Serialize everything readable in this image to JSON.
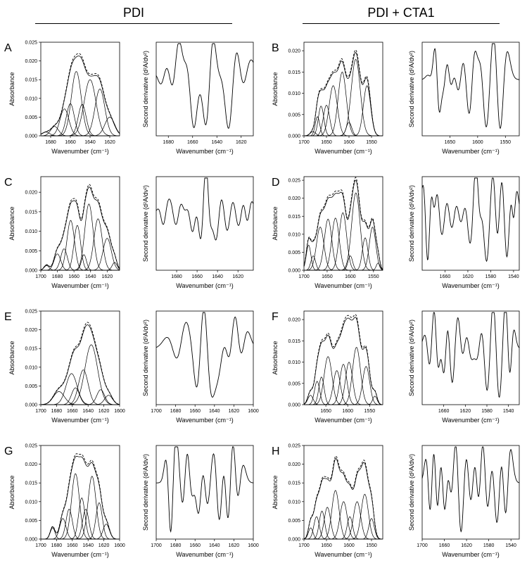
{
  "headers": {
    "left": "PDI",
    "right": "PDI + CTA1"
  },
  "labels": {
    "absorbance": "Absorbance",
    "wavenumber": "Wavenumber (cm⁻¹)",
    "second_derivative": "Second derivative (d²A/dν²)"
  },
  "chart_data": [
    {
      "letter": "A",
      "type": "line",
      "xlim": [
        1690,
        1610
      ],
      "ylim": [
        0,
        0.025
      ],
      "xticks": [
        1680,
        1660,
        1640,
        1620
      ],
      "yticks": [
        "0.000",
        "0.005",
        "0.010",
        "0.015",
        "0.020",
        "0.025"
      ],
      "bands": [
        {
          "center": 1685,
          "height": 0.001,
          "width": 4
        },
        {
          "center": 1676,
          "height": 0.0025,
          "width": 4
        },
        {
          "center": 1666,
          "height": 0.0072,
          "width": 4.5
        },
        {
          "center": 1660,
          "height": 0.0086,
          "width": 4
        },
        {
          "center": 1654,
          "height": 0.0172,
          "width": 5
        },
        {
          "center": 1648,
          "height": 0.0084,
          "width": 4
        },
        {
          "center": 1640,
          "height": 0.015,
          "width": 6
        },
        {
          "center": 1630,
          "height": 0.0125,
          "width": 5
        },
        {
          "center": 1620,
          "height": 0.005,
          "width": 5
        }
      ],
      "envelope_peak": 0.022,
      "deriv_xticks": [
        1680,
        1660,
        1640,
        1620
      ]
    },
    {
      "letter": "B",
      "type": "line",
      "xlim": [
        1700,
        1525
      ],
      "ylim": [
        0,
        0.022
      ],
      "xticks": [
        1700,
        1650,
        1600,
        1550
      ],
      "yticks": [
        "0.000",
        "0.005",
        "0.010",
        "0.015",
        "0.020"
      ],
      "bands": [
        {
          "center": 1680,
          "height": 0.001,
          "width": 6
        },
        {
          "center": 1670,
          "height": 0.0045,
          "width": 5
        },
        {
          "center": 1662,
          "height": 0.007,
          "width": 6
        },
        {
          "center": 1650,
          "height": 0.0072,
          "width": 7
        },
        {
          "center": 1635,
          "height": 0.0118,
          "width": 9
        },
        {
          "center": 1615,
          "height": 0.015,
          "width": 9
        },
        {
          "center": 1600,
          "height": 0.0032,
          "width": 6
        },
        {
          "center": 1585,
          "height": 0.018,
          "width": 10
        },
        {
          "center": 1560,
          "height": 0.0118,
          "width": 8
        }
      ],
      "envelope_peak": 0.0202,
      "deriv_xticks": [
        1650,
        1600,
        1550
      ]
    },
    {
      "letter": "C",
      "type": "line",
      "xlim": [
        1700,
        1605
      ],
      "ylim": [
        0,
        0.024
      ],
      "xticks": [
        1700,
        1680,
        1660,
        1640,
        1620
      ],
      "yticks": [
        "0.000",
        "0.005",
        "0.010",
        "0.015",
        "0.020"
      ],
      "bands": [
        {
          "center": 1693,
          "height": 0.0012,
          "width": 3
        },
        {
          "center": 1680,
          "height": 0.0042,
          "width": 4
        },
        {
          "center": 1672,
          "height": 0.0055,
          "width": 4
        },
        {
          "center": 1664,
          "height": 0.0128,
          "width": 4.5
        },
        {
          "center": 1656,
          "height": 0.0115,
          "width": 4
        },
        {
          "center": 1648,
          "height": 0.004,
          "width": 3
        },
        {
          "center": 1642,
          "height": 0.017,
          "width": 5
        },
        {
          "center": 1631,
          "height": 0.0132,
          "width": 5
        },
        {
          "center": 1620,
          "height": 0.0082,
          "width": 5
        },
        {
          "center": 1611,
          "height": 0.002,
          "width": 3
        }
      ],
      "envelope_peak": 0.022,
      "deriv_xticks": [
        1680,
        1660,
        1640,
        1620
      ]
    },
    {
      "letter": "D",
      "type": "line",
      "xlim": [
        1700,
        1530
      ],
      "ylim": [
        0,
        0.026
      ],
      "xticks": [
        1700,
        1650,
        1600,
        1550
      ],
      "yticks": [
        "0.000",
        "0.005",
        "0.010",
        "0.015",
        "0.020",
        "0.025"
      ],
      "bands": [
        {
          "center": 1690,
          "height": 0.007,
          "width": 5
        },
        {
          "center": 1680,
          "height": 0.004,
          "width": 5
        },
        {
          "center": 1665,
          "height": 0.012,
          "width": 8
        },
        {
          "center": 1648,
          "height": 0.0142,
          "width": 8
        },
        {
          "center": 1632,
          "height": 0.0145,
          "width": 8
        },
        {
          "center": 1616,
          "height": 0.016,
          "width": 8
        },
        {
          "center": 1600,
          "height": 0.004,
          "width": 5
        },
        {
          "center": 1588,
          "height": 0.0215,
          "width": 9
        },
        {
          "center": 1568,
          "height": 0.009,
          "width": 6
        },
        {
          "center": 1552,
          "height": 0.012,
          "width": 7
        },
        {
          "center": 1540,
          "height": 0.002,
          "width": 4
        }
      ],
      "envelope_peak": 0.0258,
      "deriv_xticks": [
        1660,
        1620,
        1580,
        1540
      ]
    },
    {
      "letter": "E",
      "type": "line",
      "xlim": [
        1700,
        1600
      ],
      "ylim": [
        0,
        0.025
      ],
      "xticks": [
        1700,
        1680,
        1660,
        1640,
        1620,
        1600
      ],
      "yticks": [
        "0.000",
        "0.005",
        "0.010",
        "0.015",
        "0.020",
        "0.025"
      ],
      "bands": [
        {
          "center": 1677,
          "height": 0.0035,
          "width": 7
        },
        {
          "center": 1661,
          "height": 0.0083,
          "width": 7
        },
        {
          "center": 1656,
          "height": 0.0045,
          "width": 5
        },
        {
          "center": 1646,
          "height": 0.0093,
          "width": 6
        },
        {
          "center": 1636,
          "height": 0.016,
          "width": 8
        },
        {
          "center": 1624,
          "height": 0.004,
          "width": 5
        },
        {
          "center": 1614,
          "height": 0.0025,
          "width": 5
        }
      ],
      "envelope_peak": 0.022,
      "deriv_xticks": [
        1700,
        1680,
        1660,
        1640,
        1620,
        1600
      ]
    },
    {
      "letter": "F",
      "type": "line",
      "xlim": [
        1700,
        1520
      ],
      "ylim": [
        0,
        0.022
      ],
      "xticks": [
        1650,
        1600,
        1550
      ],
      "yticks": [
        "0.000",
        "0.005",
        "0.010",
        "0.015",
        "0.020"
      ],
      "bands": [
        {
          "center": 1685,
          "height": 0.0022,
          "width": 6
        },
        {
          "center": 1670,
          "height": 0.0055,
          "width": 6
        },
        {
          "center": 1660,
          "height": 0.0065,
          "width": 6
        },
        {
          "center": 1645,
          "height": 0.0113,
          "width": 9
        },
        {
          "center": 1625,
          "height": 0.008,
          "width": 8
        },
        {
          "center": 1610,
          "height": 0.0095,
          "width": 8
        },
        {
          "center": 1597,
          "height": 0.01,
          "width": 8
        },
        {
          "center": 1580,
          "height": 0.0135,
          "width": 9
        },
        {
          "center": 1558,
          "height": 0.009,
          "width": 8
        },
        {
          "center": 1538,
          "height": 0.002,
          "width": 5
        }
      ],
      "envelope_peak": 0.0212,
      "deriv_xticks": [
        1660,
        1620,
        1580,
        1540
      ]
    },
    {
      "letter": "G",
      "type": "line",
      "xlim": [
        1700,
        1600
      ],
      "ylim": [
        0,
        0.025
      ],
      "xticks": [
        1700,
        1680,
        1660,
        1640,
        1620,
        1600
      ],
      "yticks": [
        "0.000",
        "0.005",
        "0.010",
        "0.015",
        "0.020",
        "0.025"
      ],
      "bands": [
        {
          "center": 1685,
          "height": 0.003,
          "width": 3
        },
        {
          "center": 1672,
          "height": 0.0055,
          "width": 4
        },
        {
          "center": 1664,
          "height": 0.008,
          "width": 4
        },
        {
          "center": 1656,
          "height": 0.0175,
          "width": 5
        },
        {
          "center": 1648,
          "height": 0.011,
          "width": 4
        },
        {
          "center": 1643,
          "height": 0.008,
          "width": 4
        },
        {
          "center": 1635,
          "height": 0.0168,
          "width": 5
        },
        {
          "center": 1626,
          "height": 0.0097,
          "width": 4
        },
        {
          "center": 1617,
          "height": 0.004,
          "width": 4
        }
      ],
      "envelope_peak": 0.0228,
      "deriv_xticks": [
        1700,
        1680,
        1660,
        1640,
        1620,
        1600
      ]
    },
    {
      "letter": "H",
      "type": "line",
      "xlim": [
        1700,
        1525
      ],
      "ylim": [
        0,
        0.025
      ],
      "xticks": [
        1700,
        1650,
        1600,
        1550
      ],
      "yticks": [
        "0.000",
        "0.005",
        "0.010",
        "0.015",
        "0.020",
        "0.025"
      ],
      "bands": [
        {
          "center": 1685,
          "height": 0.003,
          "width": 5
        },
        {
          "center": 1672,
          "height": 0.006,
          "width": 6
        },
        {
          "center": 1660,
          "height": 0.0075,
          "width": 6
        },
        {
          "center": 1648,
          "height": 0.0085,
          "width": 7
        },
        {
          "center": 1630,
          "height": 0.013,
          "width": 8
        },
        {
          "center": 1612,
          "height": 0.01,
          "width": 8
        },
        {
          "center": 1598,
          "height": 0.006,
          "width": 6
        },
        {
          "center": 1582,
          "height": 0.01,
          "width": 8
        },
        {
          "center": 1565,
          "height": 0.012,
          "width": 8
        },
        {
          "center": 1550,
          "height": 0.0055,
          "width": 6
        }
      ],
      "envelope_peak": 0.0222,
      "deriv_xticks": [
        1700,
        1660,
        1620,
        1580,
        1540
      ]
    }
  ]
}
